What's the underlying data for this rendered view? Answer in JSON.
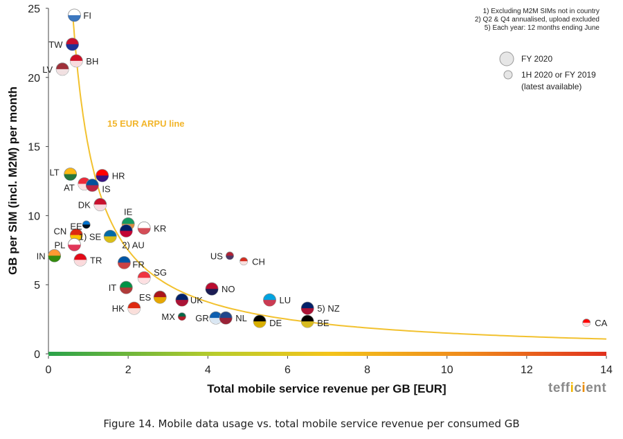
{
  "chart_data": {
    "type": "scatter",
    "xlabel": "Total mobile service revenue per GB [EUR]",
    "ylabel": "GB per SIM (incl. M2M) per month",
    "xlim": [
      0,
      14
    ],
    "ylim": [
      0,
      25
    ],
    "x_ticks": [
      "0",
      "2",
      "4",
      "6",
      "8",
      "10",
      "12",
      "14"
    ],
    "y_ticks": [
      "0",
      "5",
      "10",
      "15",
      "20",
      "25"
    ],
    "grid": false,
    "notes": [
      "1) Excluding M2M SIMs not in country",
      "2) Q2 & Q4 annualised, upload excluded",
      "5) Each year: 12 months ending June"
    ],
    "legend": [
      {
        "label": "FY 2020"
      },
      {
        "label": "1H 2020 or FY 2019",
        "label2": "(latest available)"
      }
    ],
    "curve": {
      "label": "15 EUR ARPU line",
      "arpu": 15,
      "color": "#f2c12e"
    },
    "points": [
      {
        "label": "FI",
        "x": 0.65,
        "y": 24.5,
        "size": "large"
      },
      {
        "label": "TW",
        "x": 0.6,
        "y": 22.4,
        "size": "large"
      },
      {
        "label": "BH",
        "x": 0.7,
        "y": 21.2,
        "size": "large"
      },
      {
        "label": "LV",
        "x": 0.35,
        "y": 20.6,
        "size": "large"
      },
      {
        "label": "LT",
        "x": 0.55,
        "y": 13.0,
        "size": "large"
      },
      {
        "label": "HR",
        "x": 1.35,
        "y": 12.9,
        "size": "large"
      },
      {
        "label": "AT",
        "x": 0.9,
        "y": 12.3,
        "size": "large"
      },
      {
        "label": "IS",
        "x": 1.1,
        "y": 12.2,
        "size": "large"
      },
      {
        "label": "DK",
        "x": 1.3,
        "y": 10.8,
        "size": "large"
      },
      {
        "label": "IE",
        "x": 2.0,
        "y": 9.4,
        "size": "large"
      },
      {
        "label": "KR",
        "x": 2.4,
        "y": 9.1,
        "size": "large"
      },
      {
        "label": "EE",
        "x": 0.95,
        "y": 9.35,
        "size": "small"
      },
      {
        "label": "2) AU",
        "x": 1.95,
        "y": 8.9,
        "size": "large"
      },
      {
        "label": "1) SE",
        "x": 1.55,
        "y": 8.5,
        "size": "large"
      },
      {
        "label": "CN",
        "x": 0.7,
        "y": 8.6,
        "size": "large"
      },
      {
        "label": "PL",
        "x": 0.65,
        "y": 7.9,
        "size": "large"
      },
      {
        "label": "IN",
        "x": 0.15,
        "y": 7.1,
        "size": "large"
      },
      {
        "label": "TR",
        "x": 0.8,
        "y": 6.8,
        "size": "large"
      },
      {
        "label": "FR",
        "x": 1.9,
        "y": 6.6,
        "size": "large"
      },
      {
        "label": "US",
        "x": 4.55,
        "y": 7.1,
        "size": "small"
      },
      {
        "label": "CH",
        "x": 4.9,
        "y": 6.7,
        "size": "small"
      },
      {
        "label": "SG",
        "x": 2.4,
        "y": 5.5,
        "size": "large"
      },
      {
        "label": "IT",
        "x": 1.95,
        "y": 4.8,
        "size": "large"
      },
      {
        "label": "NO",
        "x": 4.1,
        "y": 4.7,
        "size": "large"
      },
      {
        "label": "ES",
        "x": 2.8,
        "y": 4.1,
        "size": "large"
      },
      {
        "label": "UK",
        "x": 3.35,
        "y": 3.9,
        "size": "large"
      },
      {
        "label": "LU",
        "x": 5.55,
        "y": 3.9,
        "size": "large"
      },
      {
        "label": "HK",
        "x": 2.15,
        "y": 3.3,
        "size": "large"
      },
      {
        "label": "5) NZ",
        "x": 6.5,
        "y": 3.3,
        "size": "large"
      },
      {
        "label": "MX",
        "x": 3.35,
        "y": 2.7,
        "size": "small"
      },
      {
        "label": "GR",
        "x": 4.2,
        "y": 2.6,
        "size": "large"
      },
      {
        "label": "NL",
        "x": 4.45,
        "y": 2.6,
        "size": "large"
      },
      {
        "label": "DE",
        "x": 5.3,
        "y": 2.35,
        "size": "large"
      },
      {
        "label": "BE",
        "x": 6.5,
        "y": 2.35,
        "size": "large"
      },
      {
        "label": "CA",
        "x": 13.5,
        "y": 2.25,
        "size": "small"
      }
    ]
  },
  "caption": "Figure 14. Mobile data usage vs. total mobile service revenue per consumed GB",
  "brand": {
    "a": "te",
    "b": "ff",
    "c": "i",
    "d": "c",
    "e": "i",
    "f": "ent"
  }
}
